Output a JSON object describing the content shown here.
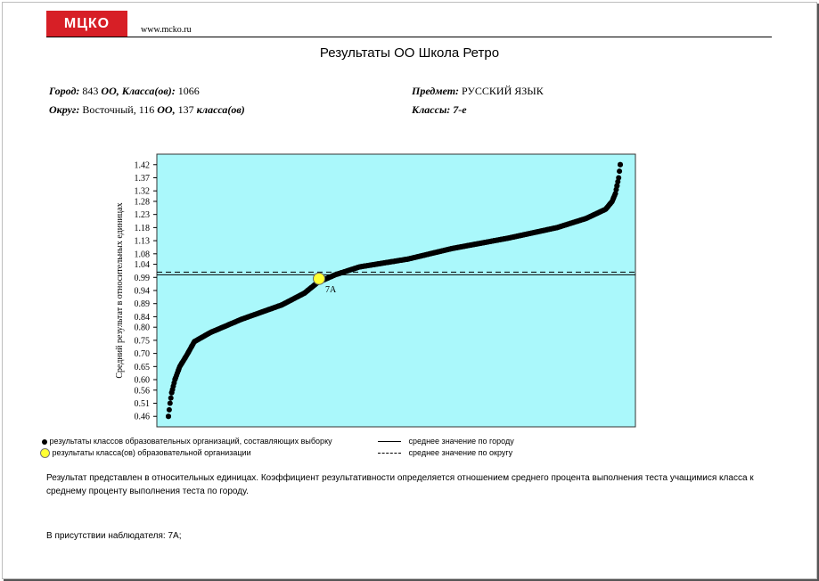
{
  "header": {
    "logo_text": "МЦКО",
    "site": "www.mcko.ru",
    "title": "Результаты ОО Школа Ретро"
  },
  "meta": {
    "city_label": "Город:",
    "city_oo": "843",
    "oo_label": "ОО, Класса(ов):",
    "city_classes": "1066",
    "district_label": "Округ:",
    "district_value": "Восточный, 116",
    "district_oo_label": "ОО,",
    "district_classes": "137",
    "district_classes_label": "класса(ов)",
    "subject_label": "Предмет:",
    "subject_value": "РУССКИЙ ЯЗЫК",
    "classes_label": "Классы:",
    "classes_value": "7-е"
  },
  "chart_data": {
    "type": "scatter",
    "ylabel": "Средний результат в относительных единицах",
    "yticks": [
      0.46,
      0.51,
      0.56,
      0.6,
      0.65,
      0.7,
      0.75,
      0.8,
      0.84,
      0.89,
      0.94,
      0.99,
      1.04,
      1.08,
      1.13,
      1.18,
      1.23,
      1.28,
      1.32,
      1.37,
      1.42
    ],
    "yticklabels": [
      "0.46",
      "0.51",
      "0.56",
      "0.60",
      "0.65",
      "0.70",
      "0.75",
      "0.80",
      "0.84",
      "0.89",
      "0.94",
      "0.99",
      "1.04",
      "1.08",
      "1.13",
      "1.18",
      "1.23",
      "1.28",
      "1.32",
      "1.37",
      "1.42"
    ],
    "ylim": [
      0.42,
      1.46
    ],
    "n_points": 137,
    "curve_anchors": [
      [
        0,
        0.46
      ],
      [
        1,
        0.51
      ],
      [
        2,
        0.55
      ],
      [
        4,
        0.6
      ],
      [
        7,
        0.65
      ],
      [
        11,
        0.69
      ],
      [
        16,
        0.745
      ],
      [
        26,
        0.78
      ],
      [
        45,
        0.83
      ],
      [
        70,
        0.885
      ],
      [
        84,
        0.93
      ],
      [
        92,
        0.97
      ],
      [
        103,
        1.0
      ],
      [
        118,
        1.03
      ],
      [
        148,
        1.06
      ],
      [
        175,
        1.1
      ],
      [
        210,
        1.14
      ],
      [
        240,
        1.18
      ],
      [
        258,
        1.215
      ],
      [
        270,
        1.25
      ],
      [
        274,
        1.28
      ],
      [
        276,
        1.31
      ],
      [
        277,
        1.34
      ],
      [
        278,
        1.37
      ],
      [
        279,
        1.42
      ]
    ],
    "curve_x_max": 279,
    "highlight": {
      "label": "7А",
      "x": 93,
      "value": 0.985
    },
    "city_mean": 1.0,
    "district_mean": 1.01,
    "background": "#aaf8fb",
    "point_color": "#000000",
    "highlight_color": "#ffff33"
  },
  "legend": {
    "dots": "результаты классов образовательных организаций, составляющих выборку",
    "highlight": "результаты класса(ов) образовательной организации",
    "city": "среднее значение по городу",
    "district": "среднее значение по округу"
  },
  "note": "Результат представлен в относительных единицах. Коэффициент результативности определяется отношением среднего процента выполнения теста учащимися класса к среднему проценту выполнения теста по городу.",
  "observer": "В присутствии наблюдателя: 7А;"
}
